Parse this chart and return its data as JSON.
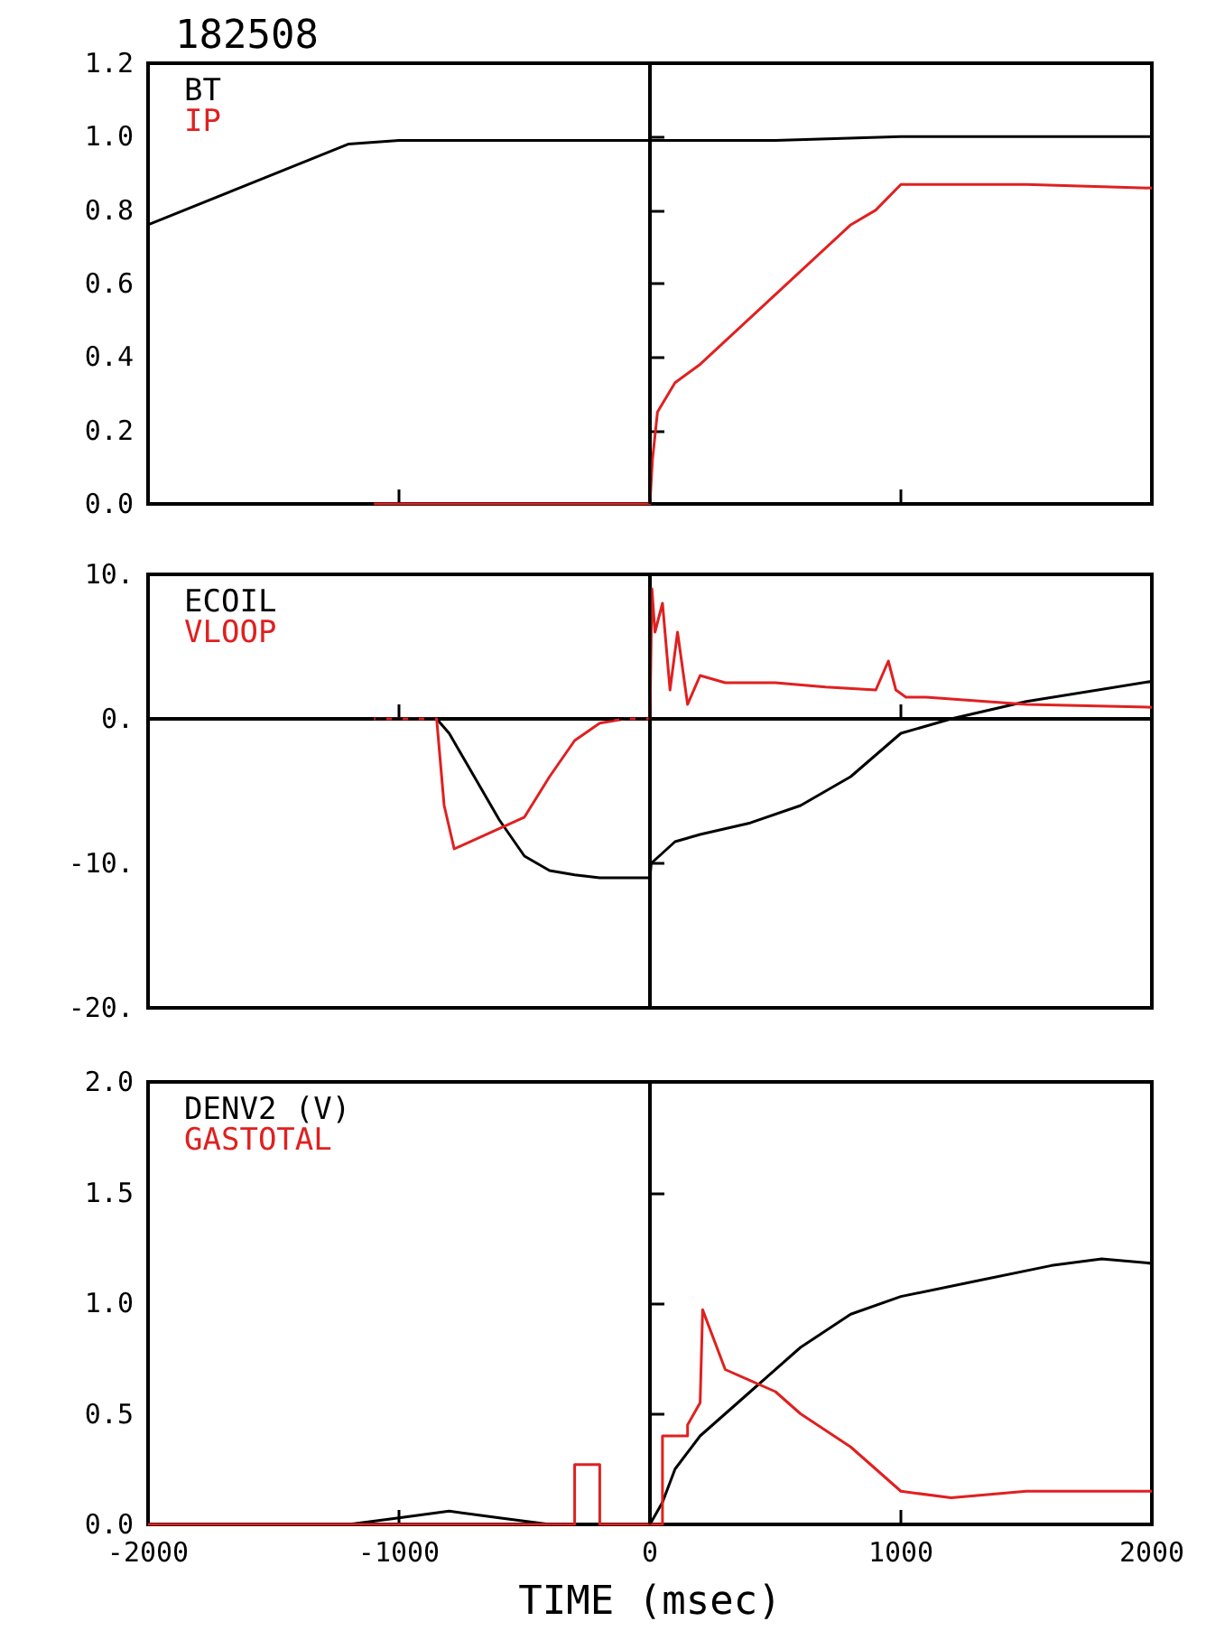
{
  "chart_data": [
    {
      "type": "line",
      "title": "182508",
      "xlim": [
        -2000,
        2000
      ],
      "xticks": [
        -2000,
        -1000,
        0,
        1000,
        2000
      ],
      "ylim": [
        0,
        1.2
      ],
      "yticks": [
        {
          "value": 0,
          "label": "0.0"
        },
        {
          "value": 0.2,
          "label": "0.2"
        },
        {
          "value": 0.4,
          "label": "0.4"
        },
        {
          "value": 0.6,
          "label": "0.6"
        },
        {
          "value": 0.8,
          "label": "0.8"
        },
        {
          "value": 1,
          "label": "1.0"
        },
        {
          "value": 1.2,
          "label": "1.2"
        }
      ],
      "tick_labels": "y",
      "legend": "top left",
      "series": [
        {
          "name": "BT",
          "color": "#000000",
          "x": [
            -2000,
            -1600,
            -1200,
            -1000,
            -500,
            0,
            500,
            1000,
            1500,
            2000
          ],
          "values": [
            0.76,
            0.87,
            0.98,
            0.99,
            0.99,
            0.99,
            0.99,
            1.0,
            1.0,
            1.0
          ]
        },
        {
          "name": "IP",
          "color": "#e02020",
          "x": [
            -1100,
            -800,
            -400,
            0,
            10,
            30,
            100,
            200,
            500,
            800,
            900,
            1000,
            1500,
            2000
          ],
          "values": [
            0,
            0,
            0,
            0,
            0.12,
            0.25,
            0.33,
            0.38,
            0.57,
            0.76,
            0.8,
            0.87,
            0.87,
            0.86
          ]
        }
      ],
      "ref_lines": [
        {
          "axis": "x",
          "value": 0,
          "color": "#000000"
        }
      ]
    },
    {
      "type": "line",
      "xlim": [
        -2000,
        2000
      ],
      "xticks": [
        -2000,
        -1000,
        0,
        1000,
        2000
      ],
      "ylim": [
        -20,
        10
      ],
      "yticks": [
        {
          "value": -20,
          "label": "-20."
        },
        {
          "value": -10,
          "label": "-10."
        },
        {
          "value": 0,
          "label": "0."
        },
        {
          "value": 10,
          "label": "10."
        }
      ],
      "tick_labels": "y",
      "legend": "top left",
      "series": [
        {
          "name": "ECOIL",
          "color": "#000000",
          "x": [
            -2000,
            -850,
            -800,
            -700,
            -600,
            -500,
            -400,
            -300,
            -200,
            0,
            5,
            100,
            200,
            400,
            600,
            800,
            1000,
            1200,
            1500,
            2000
          ],
          "values": [
            0,
            0,
            -1,
            -4,
            -7,
            -9.5,
            -10.5,
            -10.8,
            -11,
            -11,
            -10,
            -8.5,
            -8,
            -7.2,
            -6,
            -4,
            -1,
            0,
            1.2,
            2.6
          ]
        },
        {
          "name": "VLOOP",
          "color": "#e02020",
          "x": [
            -1100,
            -850,
            -820,
            -780,
            -500,
            -400,
            -300,
            -200,
            -100,
            0,
            8,
            20,
            50,
            80,
            110,
            150,
            200,
            300,
            500,
            700,
            900,
            950,
            980,
            1020,
            1100,
            1500,
            2000
          ],
          "values": [
            0,
            0,
            -6,
            -9,
            -6.8,
            -4,
            -1.5,
            -0.3,
            0,
            0,
            9,
            6,
            8,
            2,
            6,
            1,
            3,
            2.5,
            2.5,
            2.2,
            2,
            4,
            2,
            1.5,
            1.5,
            1,
            0.8
          ]
        }
      ],
      "ref_lines": [
        {
          "axis": "x",
          "value": 0,
          "color": "#000000"
        },
        {
          "axis": "y",
          "value": 0,
          "color": "#000000",
          "line_style": "dashed"
        }
      ]
    },
    {
      "type": "line",
      "xlabel": "TIME (msec)",
      "xlim": [
        -2000,
        2000
      ],
      "xticks": [
        -2000,
        -1000,
        0,
        1000,
        2000
      ],
      "ylim": [
        0,
        2
      ],
      "yticks": [
        {
          "value": 0,
          "label": "0.0"
        },
        {
          "value": 0.5,
          "label": "0.5"
        },
        {
          "value": 1,
          "label": "1.0"
        },
        {
          "value": 1.5,
          "label": "1.5"
        },
        {
          "value": 2,
          "label": "2.0"
        }
      ],
      "legend": "top left",
      "series": [
        {
          "name": "DENV2 (V)",
          "color": "#000000",
          "x": [
            -2000,
            -1200,
            -1000,
            -800,
            -600,
            -400,
            0,
            50,
            100,
            200,
            400,
            600,
            800,
            1000,
            1300,
            1600,
            1800,
            2000
          ],
          "values": [
            0,
            0,
            0.03,
            0.06,
            0.03,
            0,
            0,
            0.1,
            0.25,
            0.4,
            0.6,
            0.8,
            0.95,
            1.03,
            1.1,
            1.17,
            1.2,
            1.18
          ]
        },
        {
          "name": "GASTOTAL",
          "color": "#e02020",
          "x": [
            -2000,
            -300,
            -300,
            -200,
            -200,
            50,
            50,
            150,
            150,
            200,
            210,
            300,
            500,
            600,
            800,
            1000,
            1200,
            1500,
            2000
          ],
          "values": [
            0,
            0,
            0.27,
            0.27,
            0,
            0,
            0.4,
            0.4,
            0.45,
            0.55,
            0.97,
            0.7,
            0.6,
            0.5,
            0.35,
            0.15,
            0.12,
            0.15,
            0.15
          ]
        }
      ],
      "ref_lines": [
        {
          "axis": "x",
          "value": 0,
          "color": "#000000"
        }
      ]
    }
  ]
}
